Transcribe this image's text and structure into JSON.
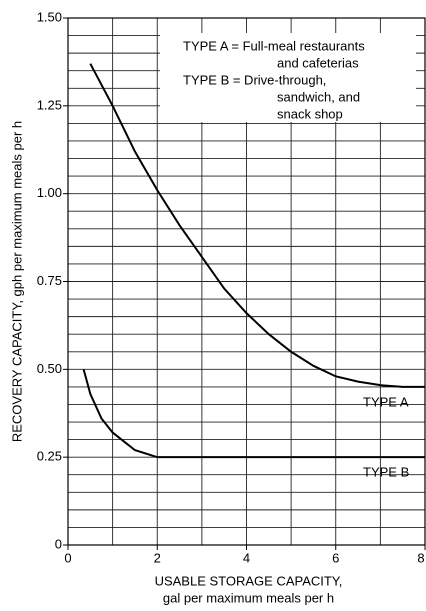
{
  "chart_data": {
    "type": "line",
    "xlabel": [
      "USABLE STORAGE CAPACITY,",
      "gal per maximum meals per h"
    ],
    "ylabel": "RECOVERY CAPACITY, gph per maximum meals per h",
    "legend_text": [
      "TYPE A = Full-meal restaurants",
      "and cafeterias",
      "TYPE B = Drive-through,",
      "sandwich, and",
      "snack shop"
    ],
    "series": [
      {
        "name": "TYPE A",
        "color": "#000000",
        "x": [
          0.5,
          1,
          1.5,
          2,
          2.5,
          3,
          3.5,
          4,
          4.5,
          5,
          5.5,
          6,
          6.5,
          7,
          7.5,
          8
        ],
        "values": [
          1.37,
          1.25,
          1.12,
          1.01,
          0.91,
          0.82,
          0.73,
          0.66,
          0.6,
          0.55,
          0.51,
          0.48,
          0.465,
          0.455,
          0.45,
          0.45
        ]
      },
      {
        "name": "TYPE B",
        "color": "#000000",
        "x": [
          0.35,
          0.5,
          0.75,
          1,
          1.5,
          2,
          4,
          6,
          8
        ],
        "values": [
          0.5,
          0.43,
          0.36,
          0.32,
          0.27,
          0.25,
          0.25,
          0.25,
          0.25
        ]
      }
    ],
    "xlim": [
      0,
      8
    ],
    "ylim": [
      0,
      1.5
    ],
    "xticks": [
      0,
      2,
      4,
      6,
      8
    ],
    "yticks": [
      0,
      0.25,
      {
        "value": 0.5,
        "label": "0.50"
      },
      0.75,
      {
        "value": 1,
        "label": "1.00"
      },
      1.25,
      {
        "value": 1.5,
        "label": "1.50"
      }
    ],
    "grid": true,
    "grid_subdivisions": {
      "x": 2,
      "y": 5
    }
  }
}
